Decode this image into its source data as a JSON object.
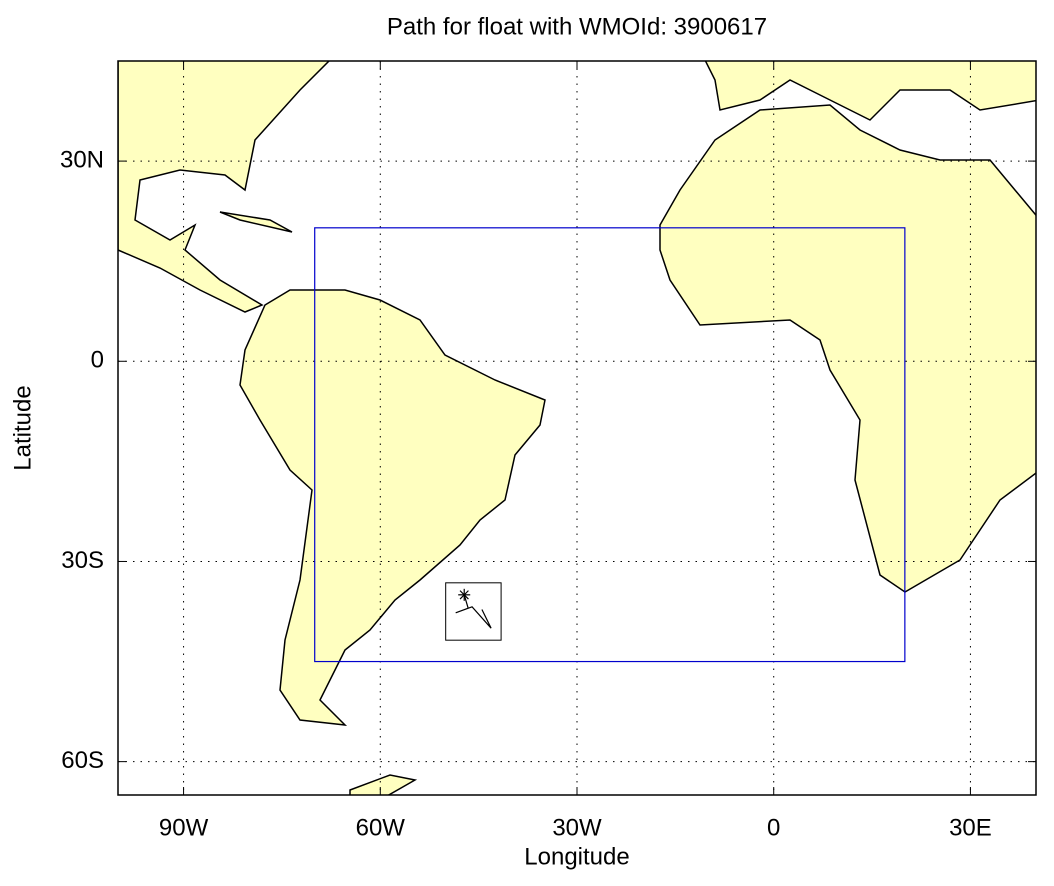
{
  "chart_data": {
    "type": "line",
    "title": "Path for float with WMOId: 3900617",
    "x_label": "Longitude",
    "y_label": "Latitude",
    "xlim": [
      -100,
      40
    ],
    "ylim": [
      -65,
      45
    ],
    "xticks": [
      {
        "value": -90,
        "label": "90W"
      },
      {
        "value": -60,
        "label": "60W"
      },
      {
        "value": -30,
        "label": "30W"
      },
      0,
      {
        "value": 30,
        "label": "30E"
      }
    ],
    "yticks": [
      {
        "value": 30,
        "label": "30N"
      },
      0,
      {
        "value": -30,
        "label": "30S"
      },
      {
        "value": -60,
        "label": "60S"
      }
    ],
    "grid": true,
    "land_color": "#ffffc0",
    "region": {
      "xlim": [
        -70,
        20
      ],
      "ylim": [
        -45,
        20
      ],
      "color": "#0000cc"
    },
    "x": [
      -47.2,
      -46.6,
      -48.5,
      -46.0,
      -43.1,
      -44.5
    ],
    "values": [
      -35.0,
      -37.0,
      -37.7,
      -36.8,
      -40.0,
      -37.2
    ],
    "color": "#000000"
  }
}
